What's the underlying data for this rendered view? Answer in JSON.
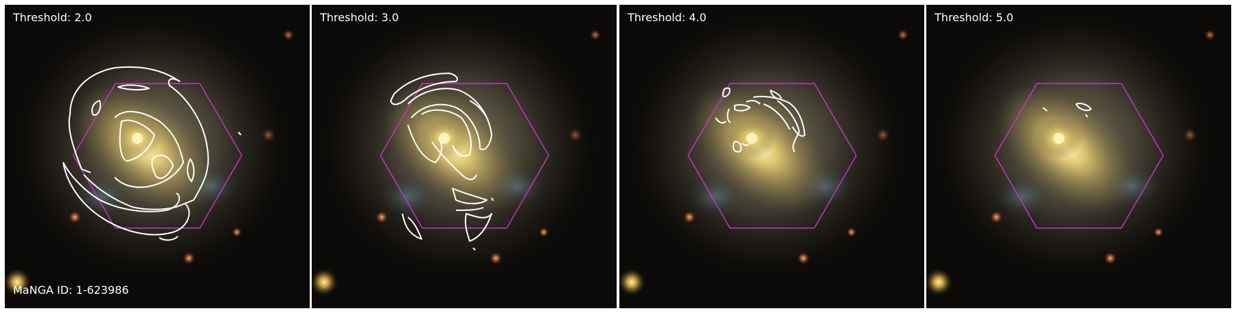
{
  "panels": [
    {
      "threshold_label": "Threshold: 2.0"
    },
    {
      "threshold_label": "Threshold: 3.0"
    },
    {
      "threshold_label": "Threshold: 4.0"
    },
    {
      "threshold_label": "Threshold: 5.0"
    }
  ],
  "manga_id_label": "MaNGA ID: 1-623986",
  "colors": {
    "hexagon": "#c837c8",
    "contour": "#ffffff",
    "galaxy_core": "#fff2a8",
    "sky": "#0c0a08"
  }
}
